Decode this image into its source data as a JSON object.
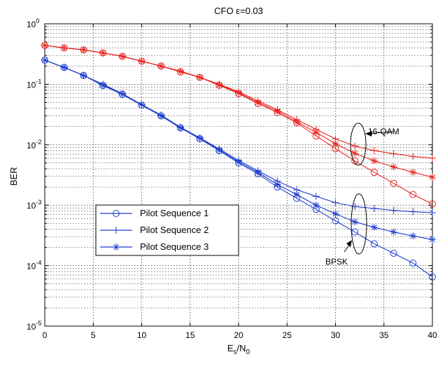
{
  "chart_data": {
    "type": "line",
    "title": "CFO ε=0.03",
    "xlabel_main": "E",
    "xlabel_sub1": "s",
    "xlabel_mid": "/N",
    "xlabel_sub2": "0",
    "ylabel": "BER",
    "x_scale": "linear",
    "y_scale": "log",
    "xlim": [
      0,
      40
    ],
    "ylim": [
      1e-05,
      1
    ],
    "x_ticks": [
      0,
      5,
      10,
      15,
      20,
      25,
      30,
      35,
      40
    ],
    "y_ticks": [
      {
        "exp": 0,
        "label_base": "10",
        "label_exp": "0"
      },
      {
        "exp": -1,
        "label_base": "10",
        "label_exp": "-1"
      },
      {
        "exp": -2,
        "label_base": "10",
        "label_exp": "-2"
      },
      {
        "exp": -3,
        "label_base": "10",
        "label_exp": "-3"
      },
      {
        "exp": -4,
        "label_base": "10",
        "label_exp": "-4"
      },
      {
        "exp": -5,
        "label_base": "10",
        "label_exp": "-5"
      }
    ],
    "grid": true,
    "legend_position": "lower-left",
    "colors": {
      "bpsk": "#1f3fcf",
      "qam16": "#e8241f"
    },
    "legend": [
      {
        "label": "Pilot Sequence 1",
        "marker": "circle"
      },
      {
        "label": "Pilot Sequence 2",
        "marker": "plus"
      },
      {
        "label": "Pilot Sequence 3",
        "marker": "star"
      }
    ],
    "annotations": [
      {
        "text": "16-QAM",
        "points_to": "16-QAM curves at Es/N0 ≈ 32"
      },
      {
        "text": "BPSK",
        "points_to": "BPSK curves at Es/N0 ≈ 32"
      }
    ],
    "x": [
      0,
      2,
      4,
      6,
      8,
      10,
      12,
      14,
      16,
      18,
      20,
      22,
      24,
      26,
      28,
      30,
      32,
      34,
      36,
      38,
      40
    ],
    "series": [
      {
        "group": "BPSK",
        "marker": "circle",
        "color": "#1f3fcf",
        "values": [
          0.25,
          0.19,
          0.14,
          0.095,
          0.068,
          0.045,
          0.03,
          0.019,
          0.0125,
          0.008,
          0.005,
          0.0033,
          0.002,
          0.0013,
          0.00085,
          0.00055,
          0.00036,
          0.00023,
          0.00016,
          0.00011,
          6.5e-05
        ]
      },
      {
        "group": "BPSK",
        "marker": "plus",
        "color": "#1f3fcf",
        "values": [
          0.25,
          0.19,
          0.14,
          0.1,
          0.07,
          0.046,
          0.031,
          0.0195,
          0.013,
          0.0085,
          0.0055,
          0.0037,
          0.0025,
          0.0018,
          0.0014,
          0.0011,
          0.00095,
          0.00088,
          0.00082,
          0.00078,
          0.00075
        ]
      },
      {
        "group": "BPSK",
        "marker": "star",
        "color": "#1f3fcf",
        "values": [
          0.25,
          0.19,
          0.14,
          0.097,
          0.069,
          0.046,
          0.03,
          0.019,
          0.0128,
          0.0082,
          0.0052,
          0.0035,
          0.0022,
          0.0015,
          0.001,
          0.00072,
          0.00053,
          0.00043,
          0.00036,
          0.00031,
          0.00027
        ]
      },
      {
        "group": "16-QAM",
        "marker": "circle",
        "color": "#e8241f",
        "values": [
          0.44,
          0.4,
          0.37,
          0.33,
          0.29,
          0.24,
          0.2,
          0.16,
          0.13,
          0.096,
          0.07,
          0.048,
          0.034,
          0.023,
          0.014,
          0.0086,
          0.0054,
          0.0035,
          0.0023,
          0.0015,
          0.00105
        ]
      },
      {
        "group": "16-QAM",
        "marker": "plus",
        "color": "#e8241f",
        "values": [
          0.44,
          0.4,
          0.37,
          0.33,
          0.29,
          0.24,
          0.2,
          0.165,
          0.13,
          0.1,
          0.075,
          0.053,
          0.038,
          0.026,
          0.018,
          0.0125,
          0.0095,
          0.008,
          0.0071,
          0.0064,
          0.006
        ]
      },
      {
        "group": "16-QAM",
        "marker": "star",
        "color": "#e8241f",
        "values": [
          0.44,
          0.4,
          0.37,
          0.33,
          0.29,
          0.24,
          0.2,
          0.163,
          0.13,
          0.098,
          0.072,
          0.05,
          0.036,
          0.024,
          0.016,
          0.0104,
          0.0072,
          0.0054,
          0.0043,
          0.0035,
          0.0029
        ]
      }
    ]
  }
}
